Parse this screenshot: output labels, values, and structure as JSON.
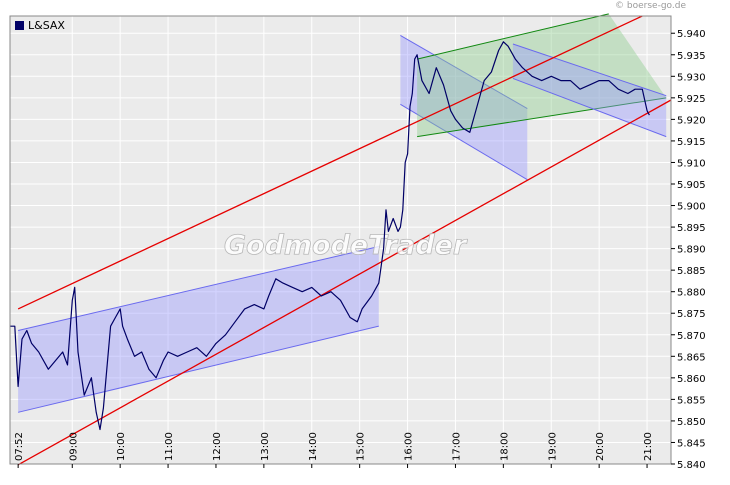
{
  "copyright": "© boerse-go.de",
  "watermark": "GodmodeTrader",
  "chart_data": {
    "type": "line",
    "title": "",
    "legend": [
      {
        "name": "L&SAX",
        "color": "#000066"
      }
    ],
    "legend_position": "top-left",
    "grid": true,
    "background": "#ebebeb",
    "xlabel": "",
    "ylabel": "",
    "ylim": [
      5.84,
      5.944
    ],
    "xlim": [
      7.7,
      21.5
    ],
    "x_tick_labels": [
      "07:52",
      "09:00",
      "10:00",
      "11:00",
      "12:00",
      "13:00",
      "14:00",
      "15:00",
      "16:00",
      "17:00",
      "18:00",
      "19:00",
      "20:00",
      "21:00"
    ],
    "x_tick_values": [
      7.87,
      9.0,
      10.0,
      11.0,
      12.0,
      13.0,
      14.0,
      15.0,
      16.0,
      17.0,
      18.0,
      19.0,
      20.0,
      21.0
    ],
    "y_tick_labels": [
      "5.840",
      "5.845",
      "5.850",
      "5.855",
      "5.860",
      "5.865",
      "5.870",
      "5.875",
      "5.880",
      "5.885",
      "5.890",
      "5.895",
      "5.900",
      "5.905",
      "5.910",
      "5.915",
      "5.920",
      "5.925",
      "5.930",
      "5.935",
      "5.940"
    ],
    "y_tick_values": [
      5.84,
      5.845,
      5.85,
      5.855,
      5.86,
      5.865,
      5.87,
      5.875,
      5.88,
      5.885,
      5.89,
      5.895,
      5.9,
      5.905,
      5.91,
      5.915,
      5.92,
      5.925,
      5.93,
      5.935,
      5.94
    ],
    "series": [
      {
        "name": "L&SAX",
        "color": "#000066",
        "x": [
          7.7,
          7.8,
          7.87,
          7.95,
          8.05,
          8.15,
          8.3,
          8.5,
          8.65,
          8.8,
          8.9,
          9.0,
          9.05,
          9.12,
          9.25,
          9.4,
          9.5,
          9.58,
          9.65,
          9.72,
          9.8,
          9.9,
          10.0,
          10.05,
          10.15,
          10.3,
          10.45,
          10.6,
          10.75,
          10.9,
          11.0,
          11.2,
          11.4,
          11.6,
          11.8,
          12.0,
          12.2,
          12.4,
          12.6,
          12.8,
          13.0,
          13.1,
          13.25,
          13.4,
          13.6,
          13.8,
          14.0,
          14.2,
          14.4,
          14.6,
          14.8,
          14.95,
          15.05,
          15.25,
          15.4,
          15.5,
          15.55,
          15.6,
          15.7,
          15.8,
          15.85,
          15.9,
          15.95,
          16.0,
          16.05,
          16.1,
          16.15,
          16.2,
          16.3,
          16.45,
          16.6,
          16.75,
          16.9,
          17.0,
          17.15,
          17.3,
          17.45,
          17.6,
          17.75,
          17.9,
          18.0,
          18.1,
          18.25,
          18.4,
          18.6,
          18.8,
          19.0,
          19.2,
          19.4,
          19.6,
          19.8,
          20.0,
          20.2,
          20.4,
          20.6,
          20.75,
          20.9,
          21.0,
          21.05
        ],
        "values": [
          5.872,
          5.872,
          5.858,
          5.869,
          5.871,
          5.868,
          5.866,
          5.862,
          5.864,
          5.866,
          5.863,
          5.878,
          5.881,
          5.866,
          5.856,
          5.86,
          5.852,
          5.848,
          5.853,
          5.862,
          5.872,
          5.874,
          5.876,
          5.872,
          5.869,
          5.865,
          5.866,
          5.862,
          5.86,
          5.864,
          5.866,
          5.865,
          5.866,
          5.867,
          5.865,
          5.868,
          5.87,
          5.873,
          5.876,
          5.877,
          5.876,
          5.879,
          5.883,
          5.882,
          5.881,
          5.88,
          5.881,
          5.879,
          5.88,
          5.878,
          5.874,
          5.873,
          5.876,
          5.879,
          5.882,
          5.89,
          5.899,
          5.894,
          5.897,
          5.894,
          5.895,
          5.899,
          5.91,
          5.912,
          5.923,
          5.926,
          5.934,
          5.935,
          5.929,
          5.926,
          5.932,
          5.928,
          5.922,
          5.92,
          5.918,
          5.917,
          5.923,
          5.929,
          5.931,
          5.936,
          5.938,
          5.937,
          5.934,
          5.932,
          5.93,
          5.929,
          5.93,
          5.929,
          5.929,
          5.927,
          5.928,
          5.929,
          5.929,
          5.927,
          5.926,
          5.927,
          5.927,
          5.922,
          5.921
        ]
      }
    ],
    "overlays": [
      {
        "name": "red-upper-trendline",
        "type": "line",
        "color": "#e60000",
        "points": [
          [
            7.87,
            5.876
          ],
          [
            20.9,
            5.944
          ]
        ]
      },
      {
        "name": "red-lower-trendline",
        "type": "line",
        "color": "#e60000",
        "points": [
          [
            7.87,
            5.8398
          ],
          [
            21.5,
            5.9245
          ]
        ]
      },
      {
        "name": "blue-lower-channel",
        "type": "band",
        "color": "#9999ff",
        "upper": [
          [
            7.87,
            5.871
          ],
          [
            15.4,
            5.8905
          ]
        ],
        "lower": [
          [
            7.87,
            5.852
          ],
          [
            15.4,
            5.872
          ]
        ]
      },
      {
        "name": "blue-falling-channel",
        "type": "band",
        "color": "#9999ff",
        "upper": [
          [
            15.85,
            5.9395
          ],
          [
            18.5,
            5.9225
          ]
        ],
        "lower": [
          [
            15.85,
            5.9235
          ],
          [
            18.5,
            5.906
          ]
        ]
      },
      {
        "name": "green-rising-channel",
        "type": "band",
        "color": "#8ccc8c",
        "upper": [
          [
            16.2,
            5.934
          ],
          [
            20.2,
            5.9445
          ]
        ],
        "lower": [
          [
            16.2,
            5.916
          ],
          [
            21.4,
            5.925
          ]
        ]
      },
      {
        "name": "blue-late-channel",
        "type": "band",
        "color": "#9999ff",
        "upper": [
          [
            18.2,
            5.9375
          ],
          [
            21.4,
            5.9255
          ]
        ],
        "lower": [
          [
            18.2,
            5.9295
          ],
          [
            21.4,
            5.916
          ]
        ]
      }
    ]
  }
}
